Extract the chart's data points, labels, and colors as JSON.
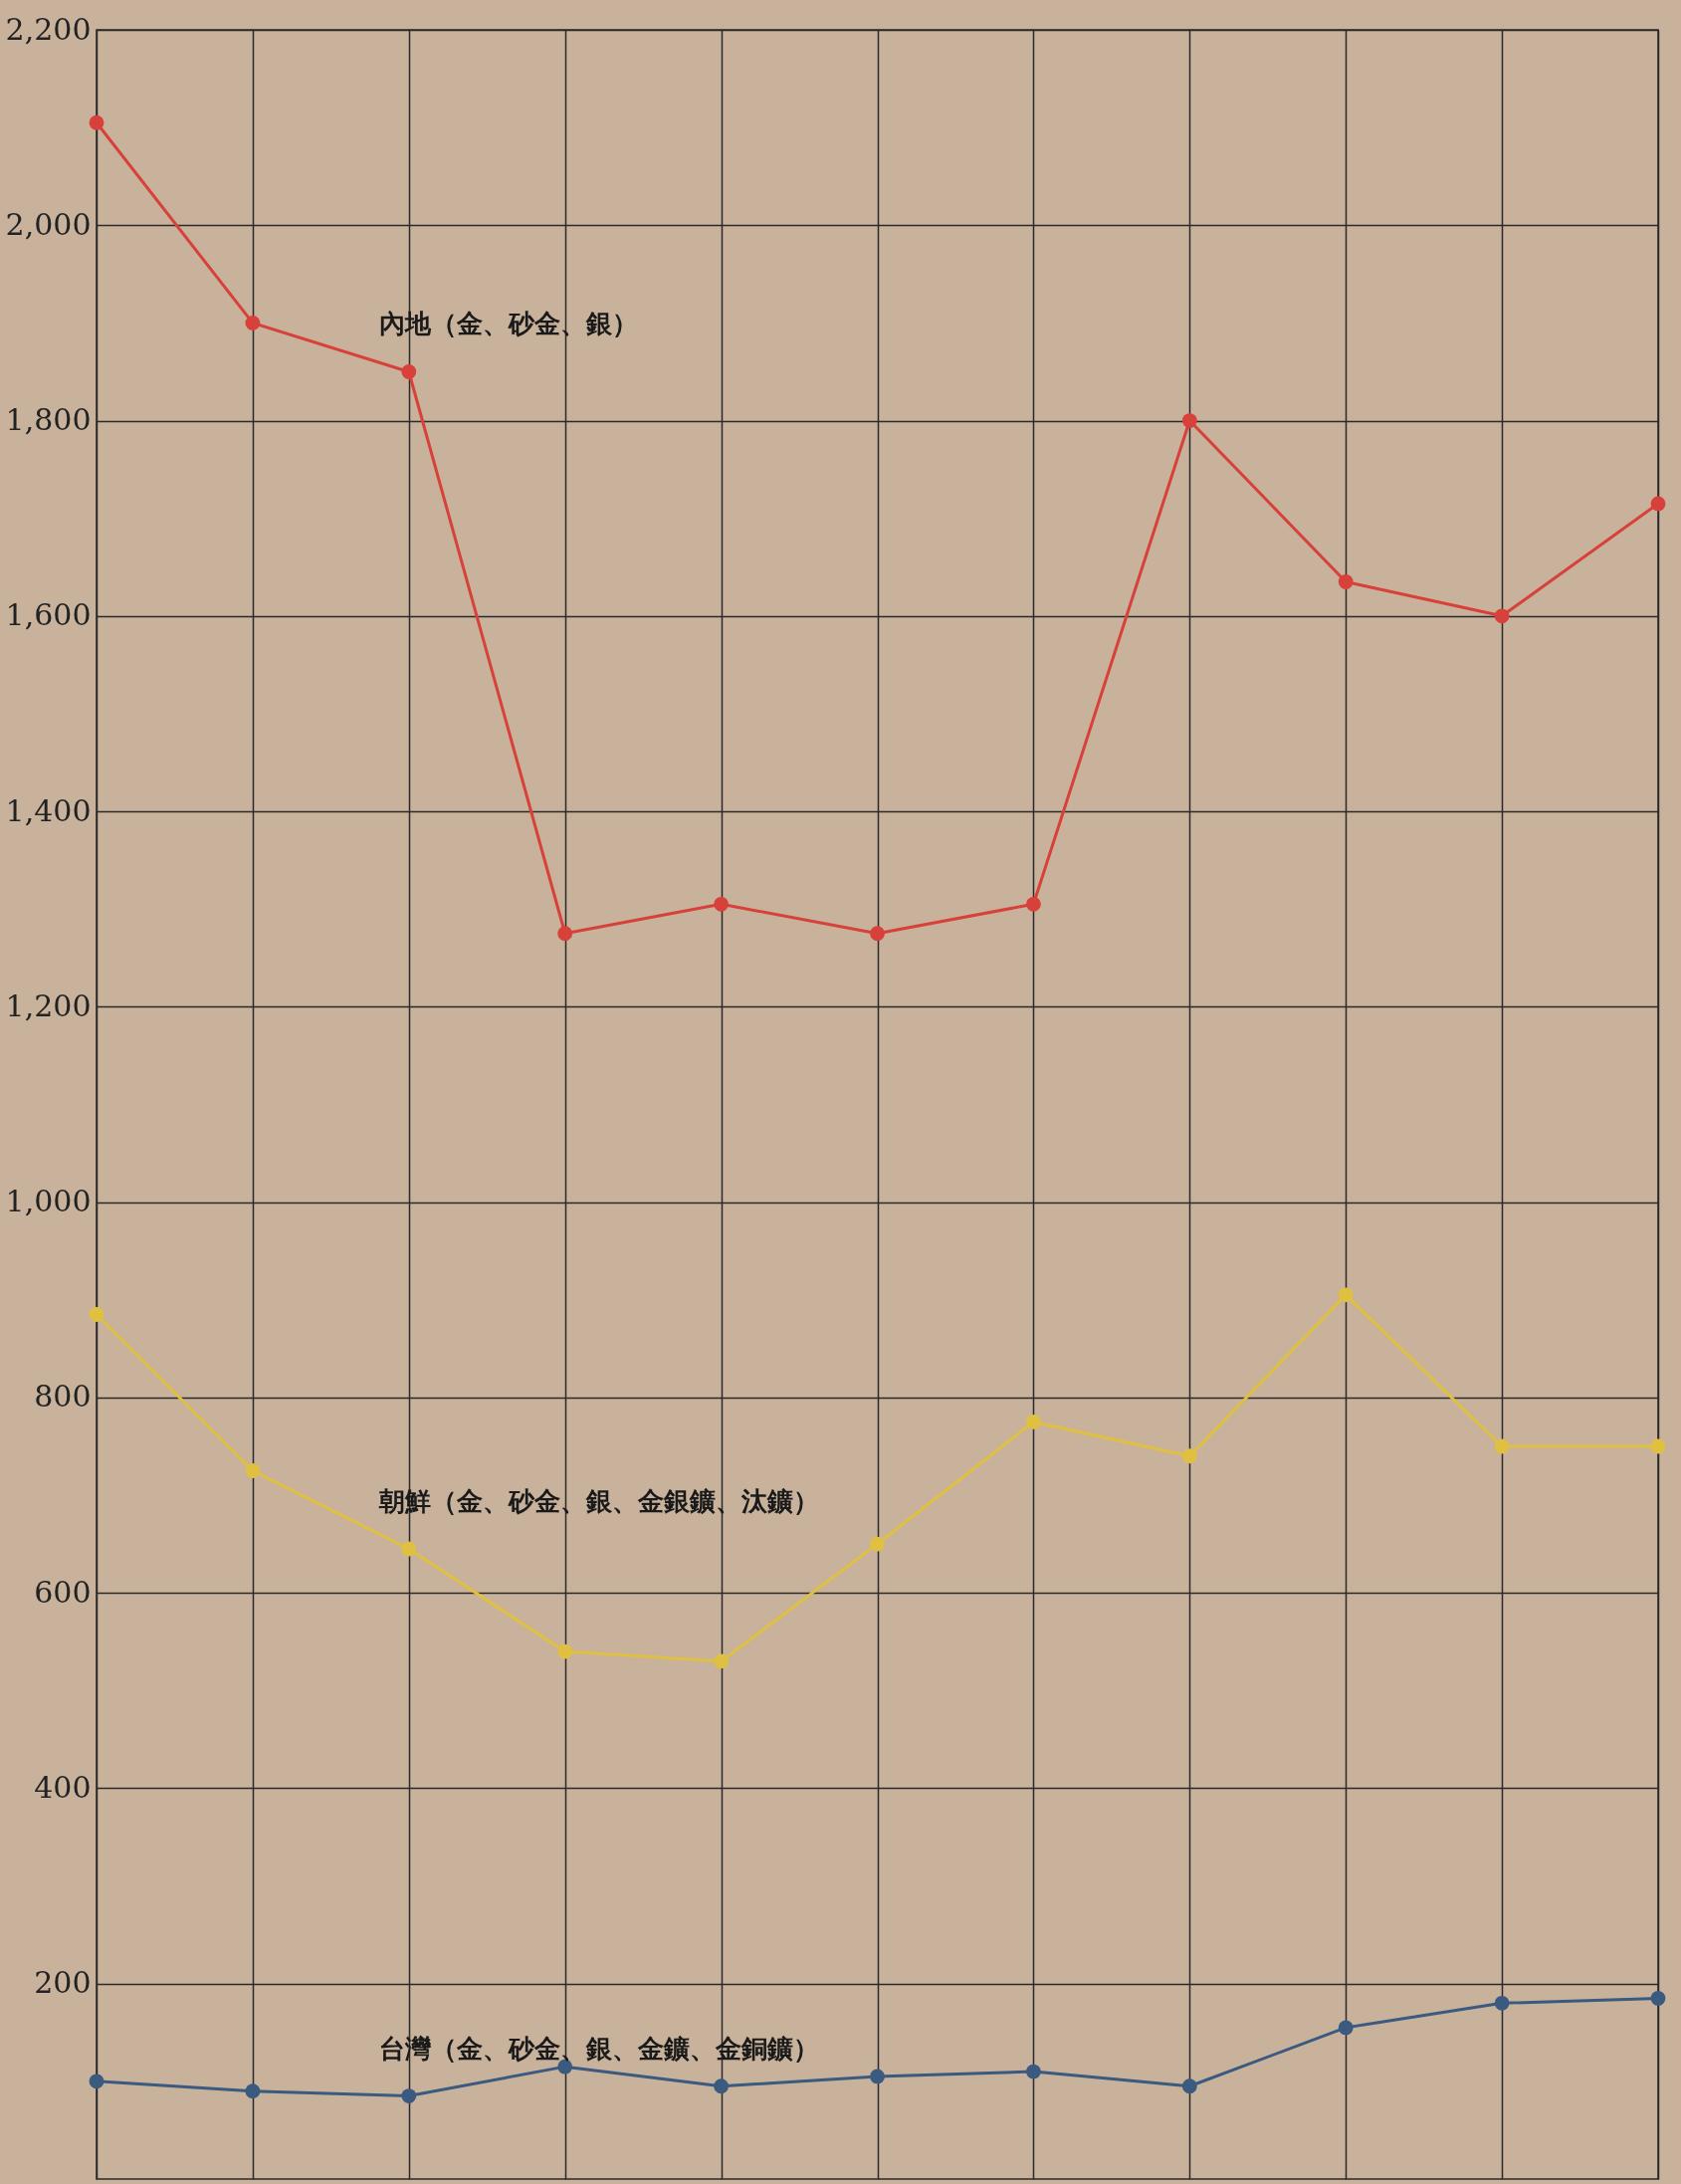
{
  "chart_data": {
    "type": "line",
    "categories": [
      null,
      null,
      null,
      null,
      null,
      null,
      null,
      null,
      null,
      null,
      null
    ],
    "series": [
      {
        "name": "內地（金、砂金、銀）",
        "color": "#d8403a",
        "values": [
          2105,
          1900,
          1850,
          1275,
          1305,
          1275,
          1305,
          1800,
          1635,
          1600,
          1715
        ]
      },
      {
        "name": "朝鮮（金、砂金、銀、金銀鑛、汰鑛）",
        "color": "#e0c040",
        "values": [
          885,
          725,
          645,
          540,
          530,
          650,
          775,
          740,
          905,
          750,
          750
        ]
      },
      {
        "name": "台灣（金、砂金、銀、金鑛、金銅鑛）",
        "color": "#3a5a80",
        "values": [
          100,
          90,
          85,
          115,
          95,
          105,
          110,
          95,
          155,
          180,
          185
        ]
      }
    ],
    "ylim": [
      0,
      2200
    ],
    "yticks": [
      {
        "value": 200,
        "label": "200"
      },
      {
        "value": 400,
        "label": "400"
      },
      {
        "value": 600,
        "label": "600"
      },
      {
        "value": 800,
        "label": "800"
      },
      {
        "value": 1000,
        "label": "1,000"
      },
      {
        "value": 1200,
        "label": "1,200"
      },
      {
        "value": 1400,
        "label": "1,400"
      },
      {
        "value": 1600,
        "label": "1,600"
      },
      {
        "value": 1800,
        "label": "1,800"
      },
      {
        "value": 2000,
        "label": "2,000"
      },
      {
        "value": 2200,
        "label": "2,200"
      }
    ],
    "grid": true,
    "marker": "circle",
    "line_style": "solid"
  }
}
